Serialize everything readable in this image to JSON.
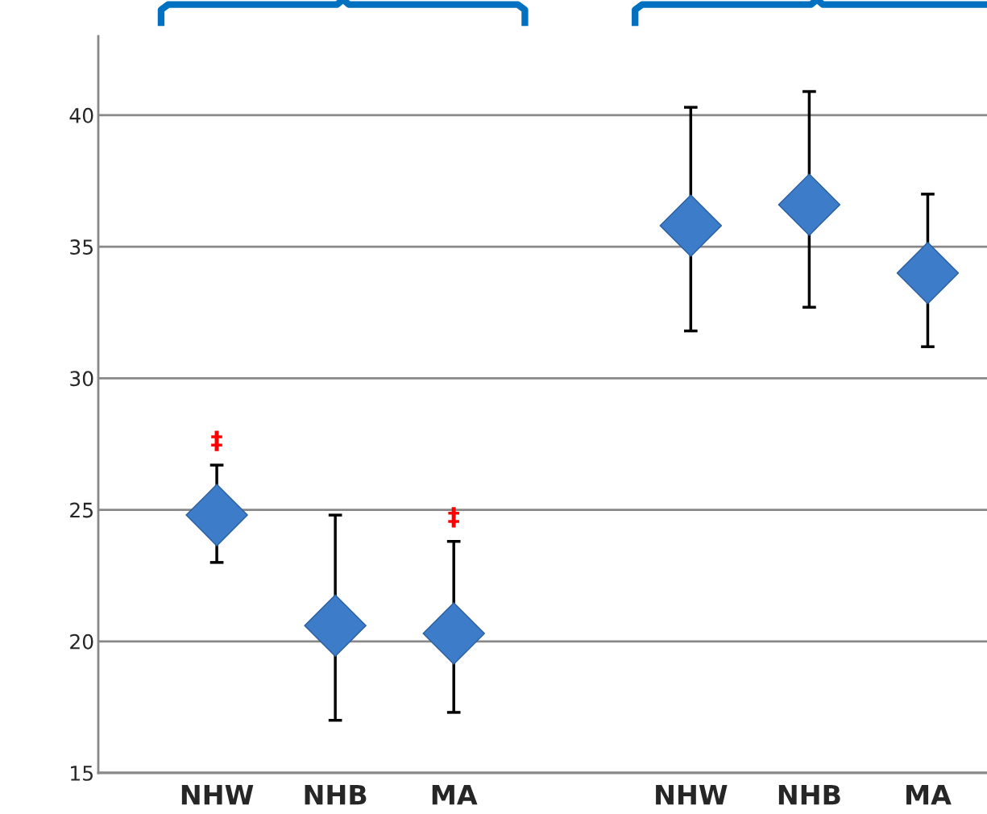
{
  "chart_data": {
    "type": "scatter",
    "categories": [
      "NHW",
      "NHB",
      "MA",
      null,
      "NHW",
      "NHB",
      "MA"
    ],
    "series": [
      {
        "color": "#3d7cc9",
        "value_labels": [
          "‡",
          null,
          "‡",
          null,
          null,
          null,
          null
        ],
        "values": [
          24.8,
          20.6,
          20.3,
          null,
          35.8,
          36.6,
          34.0
        ],
        "errors": [
          [
            23.0,
            26.7
          ],
          [
            17.0,
            24.8
          ],
          [
            17.3,
            23.8
          ],
          null,
          [
            31.8,
            40.3
          ],
          [
            32.7,
            40.9
          ],
          [
            31.2,
            37.0
          ]
        ]
      }
    ],
    "ylim": [
      15,
      43
    ],
    "yticks": [
      15,
      20,
      25,
      30,
      35,
      40
    ],
    "grid": "y",
    "marker": "diamond"
  }
}
